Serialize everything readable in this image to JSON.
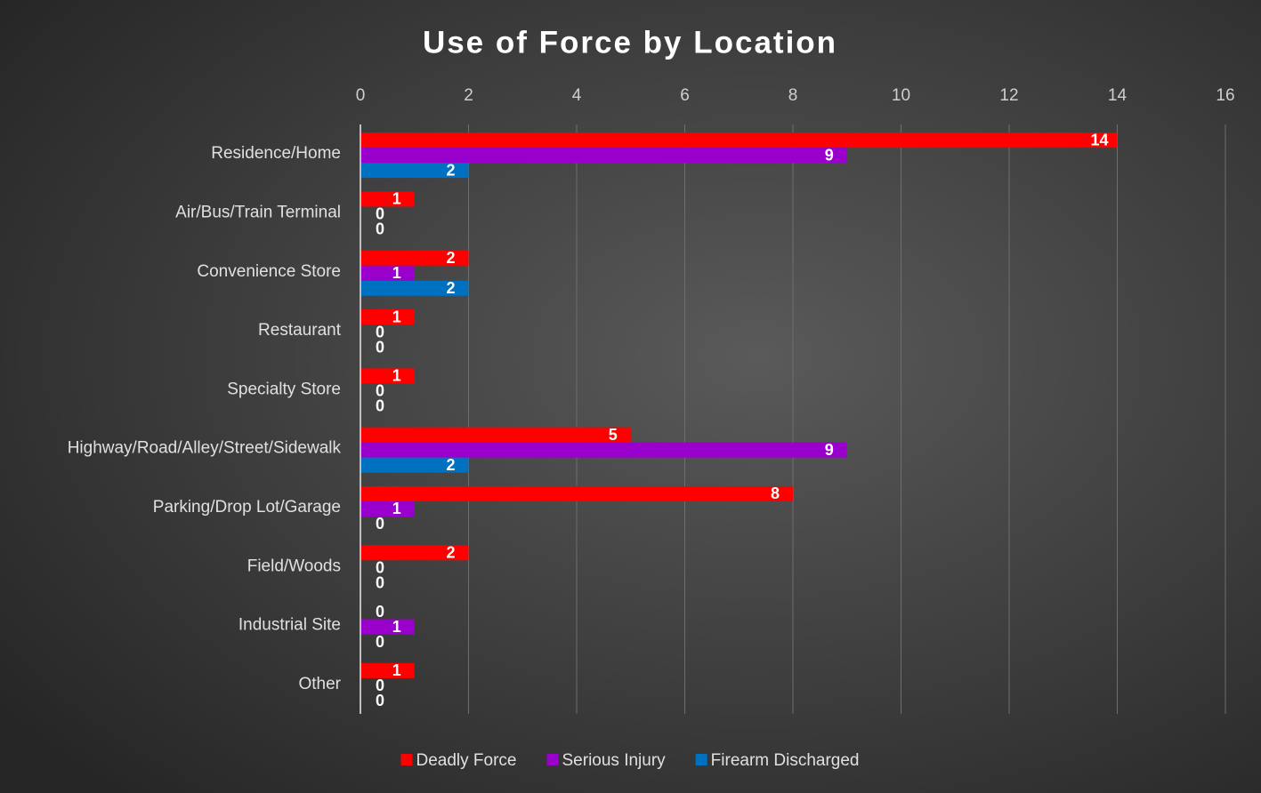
{
  "chart_data": {
    "type": "bar",
    "orientation": "horizontal",
    "title": "Use of Force by Location",
    "categories": [
      "Residence/Home",
      "Air/Bus/Train Terminal",
      "Convenience Store",
      "Restaurant",
      "Specialty Store",
      "Highway/Road/Alley/Street/Sidewalk",
      "Parking/Drop Lot/Garage",
      "Field/Woods",
      "Industrial Site",
      "Other"
    ],
    "series": [
      {
        "name": "Deadly Force",
        "color": "#ff0000",
        "values": [
          14,
          1,
          2,
          1,
          1,
          5,
          8,
          2,
          0,
          1
        ]
      },
      {
        "name": "Serious Injury",
        "color": "#9900cc",
        "values": [
          9,
          0,
          1,
          0,
          0,
          9,
          1,
          0,
          1,
          0
        ]
      },
      {
        "name": "Firearm Discharged",
        "color": "#0070c0",
        "values": [
          2,
          0,
          2,
          0,
          0,
          2,
          0,
          0,
          0,
          0
        ]
      }
    ],
    "xlim": [
      0,
      16
    ],
    "xticks": [
      0,
      2,
      4,
      6,
      8,
      10,
      12,
      14,
      16
    ],
    "grid": true,
    "legend": "bottom"
  }
}
